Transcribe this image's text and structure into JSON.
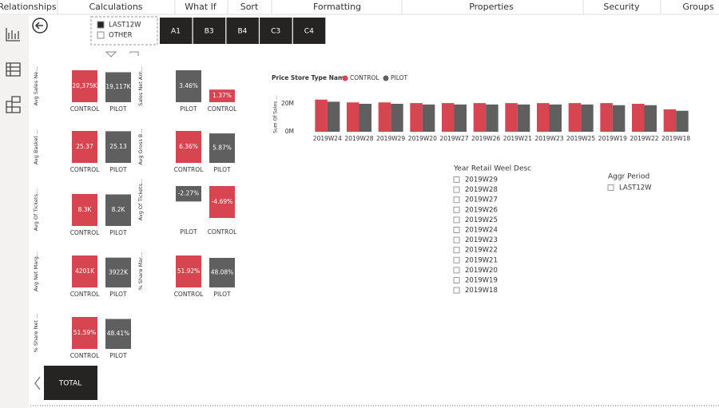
{
  "ribbon": [
    "Relationships",
    "Calculations",
    "What If",
    "Sort",
    "Formatting",
    "Properties",
    "Security",
    "Groups"
  ],
  "top_slicer": [
    "LAST12W",
    "OTHER"
  ],
  "buttons": [
    "A1",
    "B3",
    "B4",
    "C3",
    "C4"
  ],
  "total_button": "TOTAL",
  "kpis": [
    {
      "axis_label": "Avg Sales Ne...",
      "bars": [
        {
          "name": "CONTROL",
          "value": 20375,
          "label": "20,375K"
        },
        {
          "name": "PILOT",
          "value": 19117,
          "label": "19,117K"
        }
      ]
    },
    {
      "axis_label": "Avg Basket ...",
      "bars": [
        {
          "name": "CONTROL",
          "value": 25.37,
          "label": "25.37"
        },
        {
          "name": "PILOT",
          "value": 25.13,
          "label": "25.13"
        }
      ]
    },
    {
      "axis_label": "Avg Of Tickets...",
      "bars": [
        {
          "name": "CONTROL",
          "value": 8.3,
          "label": "8.3K"
        },
        {
          "name": "PILOT",
          "value": 8.2,
          "label": "8.2K"
        }
      ]
    },
    {
      "axis_label": "Avg Net Marg...",
      "bars": [
        {
          "name": "CONTROL",
          "value": 4201,
          "label": "4201K"
        },
        {
          "name": "PILOT",
          "value": 3922,
          "label": "3922K"
        }
      ]
    },
    {
      "axis_label": "% Share Net ...",
      "bars": [
        {
          "name": "CONTROL",
          "value": 51.59,
          "label": "51.59%"
        },
        {
          "name": "PILOT",
          "value": 48.41,
          "label": "48.41%"
        }
      ]
    },
    {
      "axis_label": "Sales Net Am...",
      "bars": [
        {
          "name": "PILOT",
          "value": 3.46,
          "label": "3.46%"
        },
        {
          "name": "CONTROL",
          "value": 1.37,
          "label": "1.37%"
        }
      ]
    },
    {
      "axis_label": "Avg Gross B...",
      "bars": [
        {
          "name": "CONTROL",
          "value": 6.36,
          "label": "6.36%"
        },
        {
          "name": "PILOT",
          "value": 5.87,
          "label": "5.87%"
        }
      ]
    },
    {
      "axis_label": "Avg Of Tickets...",
      "bars": [
        {
          "name": "PILOT",
          "value": -2.27,
          "label": "-2.27%"
        },
        {
          "name": "CONTROL",
          "value": -4.69,
          "label": "-4.69%"
        }
      ]
    },
    {
      "axis_label": "% Share Mar...",
      "bars": [
        {
          "name": "CONTROL",
          "value": 51.92,
          "label": "51.92%"
        },
        {
          "name": "PILOT",
          "value": 48.08,
          "label": "48.08%"
        }
      ]
    }
  ],
  "chart_data": {
    "type": "bar",
    "legend_title": "Price Store Type Name",
    "y_label": "Sum Of Sales ...",
    "categories": [
      "2019W24",
      "2019W28",
      "2019W29",
      "2019W20",
      "2019W27",
      "2019W26",
      "2019W21",
      "2019W23",
      "2019W25",
      "2019W19",
      "2019W22",
      "2019W18"
    ],
    "series": [
      {
        "name": "CONTROL",
        "color": "#d64550",
        "values": [
          23000000,
          21000000,
          21000000,
          20500000,
          20500000,
          20500000,
          20500000,
          20500000,
          20500000,
          20500000,
          20000000,
          16000000
        ]
      },
      {
        "name": "PILOT",
        "color": "#5f5f5f",
        "values": [
          21500000,
          20000000,
          20000000,
          19500000,
          19500000,
          19500000,
          19500000,
          19500000,
          19500000,
          19000000,
          19000000,
          15000000
        ]
      }
    ],
    "ylim": [
      0,
      25000000
    ],
    "yticks": [
      {
        "value": 0,
        "label": "0M"
      },
      {
        "value": 20000000,
        "label": "20M"
      }
    ]
  },
  "week_slicer": {
    "title": "Year Retail Weel Desc",
    "items": [
      "2019W29",
      "2019W28",
      "2019W27",
      "2019W26",
      "2019W25",
      "2019W24",
      "2019W23",
      "2019W22",
      "2019W21",
      "2019W20",
      "2019W19",
      "2019W18"
    ]
  },
  "period_slicer": {
    "title": "Aggr Period",
    "items": [
      "LAST12W"
    ]
  }
}
